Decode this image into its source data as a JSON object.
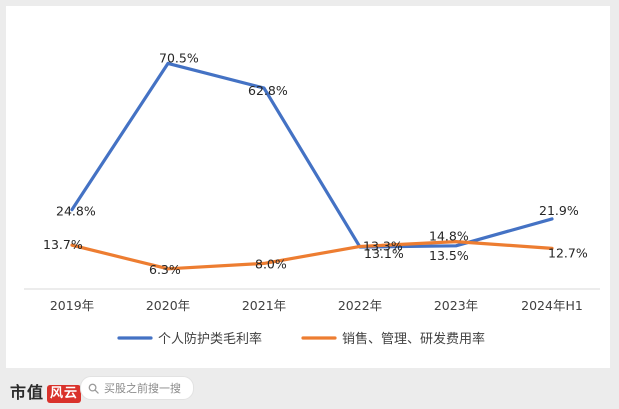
{
  "chart_data": {
    "type": "line",
    "categories": [
      "2019年",
      "2020年",
      "2021年",
      "2022年",
      "2023年",
      "2024年H1"
    ],
    "series": [
      {
        "name": "个人防护类毛利率",
        "values": [
          24.8,
          70.5,
          62.8,
          13.1,
          13.5,
          21.9
        ],
        "labels": [
          "24.8%",
          "70.5%",
          "62.8%",
          "13.1%",
          "13.5%",
          "21.9%"
        ],
        "color": "#4472c4"
      },
      {
        "name": "销售、管理、研发费用率",
        "values": [
          13.7,
          6.3,
          8.0,
          13.3,
          14.8,
          12.7
        ],
        "labels": [
          "13.7%",
          "6.3%",
          "8.0%",
          "13.3%",
          "14.8%",
          "12.7%"
        ],
        "color": "#ed7d31"
      }
    ],
    "ylim": [
      0,
      80
    ],
    "grid": false,
    "legend_position": "bottom"
  },
  "footer": {
    "brand_text": "市值",
    "brand_seal": "风云",
    "search_placeholder": "买股之前搜一搜"
  }
}
